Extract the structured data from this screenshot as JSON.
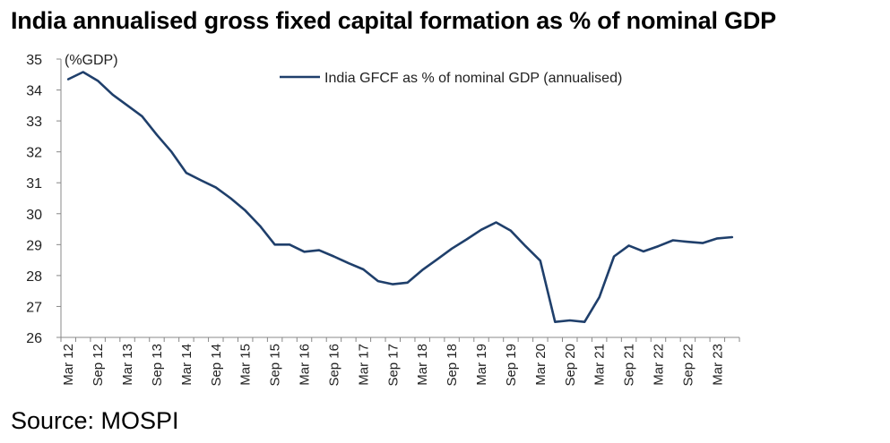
{
  "title": "India annualised gross fixed capital formation as % of nominal GDP",
  "source": "Source: MOSPI",
  "chart_data": {
    "type": "line",
    "title": "India annualised gross fixed capital formation as % of nominal GDP",
    "ylabel": "(%GDP)",
    "xlabel": "",
    "ylim": [
      26,
      35
    ],
    "yticks": [
      26,
      27,
      28,
      29,
      30,
      31,
      32,
      33,
      34,
      35
    ],
    "grid": false,
    "legend_position": "top-center",
    "tick_labels": [
      "Mar 12",
      "Sep 12",
      "Mar 13",
      "Sep 13",
      "Mar 14",
      "Sep 14",
      "Mar 15",
      "Sep 15",
      "Mar 16",
      "Sep 16",
      "Mar 17",
      "Sep 17",
      "Mar 18",
      "Sep 18",
      "Mar 19",
      "Sep 19",
      "Mar 20",
      "Sep 20",
      "Mar 21",
      "Sep 21",
      "Mar 22",
      "Sep 22",
      "Mar 23"
    ],
    "x": [
      "Mar 12",
      "Jun 12",
      "Sep 12",
      "Dec 12",
      "Mar 13",
      "Jun 13",
      "Sep 13",
      "Dec 13",
      "Mar 14",
      "Jun 14",
      "Sep 14",
      "Dec 14",
      "Mar 15",
      "Jun 15",
      "Sep 15",
      "Dec 15",
      "Mar 16",
      "Jun 16",
      "Sep 16",
      "Dec 16",
      "Mar 17",
      "Jun 17",
      "Sep 17",
      "Dec 17",
      "Mar 18",
      "Jun 18",
      "Sep 18",
      "Dec 18",
      "Mar 19",
      "Jun 19",
      "Sep 19",
      "Dec 19",
      "Mar 20",
      "Jun 20",
      "Sep 20",
      "Dec 20",
      "Mar 21",
      "Jun 21",
      "Sep 21",
      "Dec 21",
      "Mar 22",
      "Jun 22",
      "Sep 22",
      "Dec 22",
      "Mar 23",
      "Jun 23"
    ],
    "series": [
      {
        "name": "India GFCF as % of nominal GDP (annualised)",
        "color": "#1f3f6b",
        "values": [
          34.35,
          34.58,
          34.3,
          33.85,
          33.5,
          33.15,
          32.55,
          32.0,
          31.32,
          31.08,
          30.85,
          30.5,
          30.1,
          29.6,
          29.0,
          29.0,
          28.77,
          28.82,
          28.62,
          28.4,
          28.2,
          27.82,
          27.72,
          27.77,
          28.18,
          28.52,
          28.87,
          29.17,
          29.48,
          29.72,
          29.45,
          28.95,
          28.48,
          26.5,
          26.55,
          26.5,
          27.3,
          28.62,
          28.97,
          28.78,
          28.95,
          29.14,
          29.09,
          29.05,
          29.2,
          29.24
        ]
      }
    ]
  }
}
